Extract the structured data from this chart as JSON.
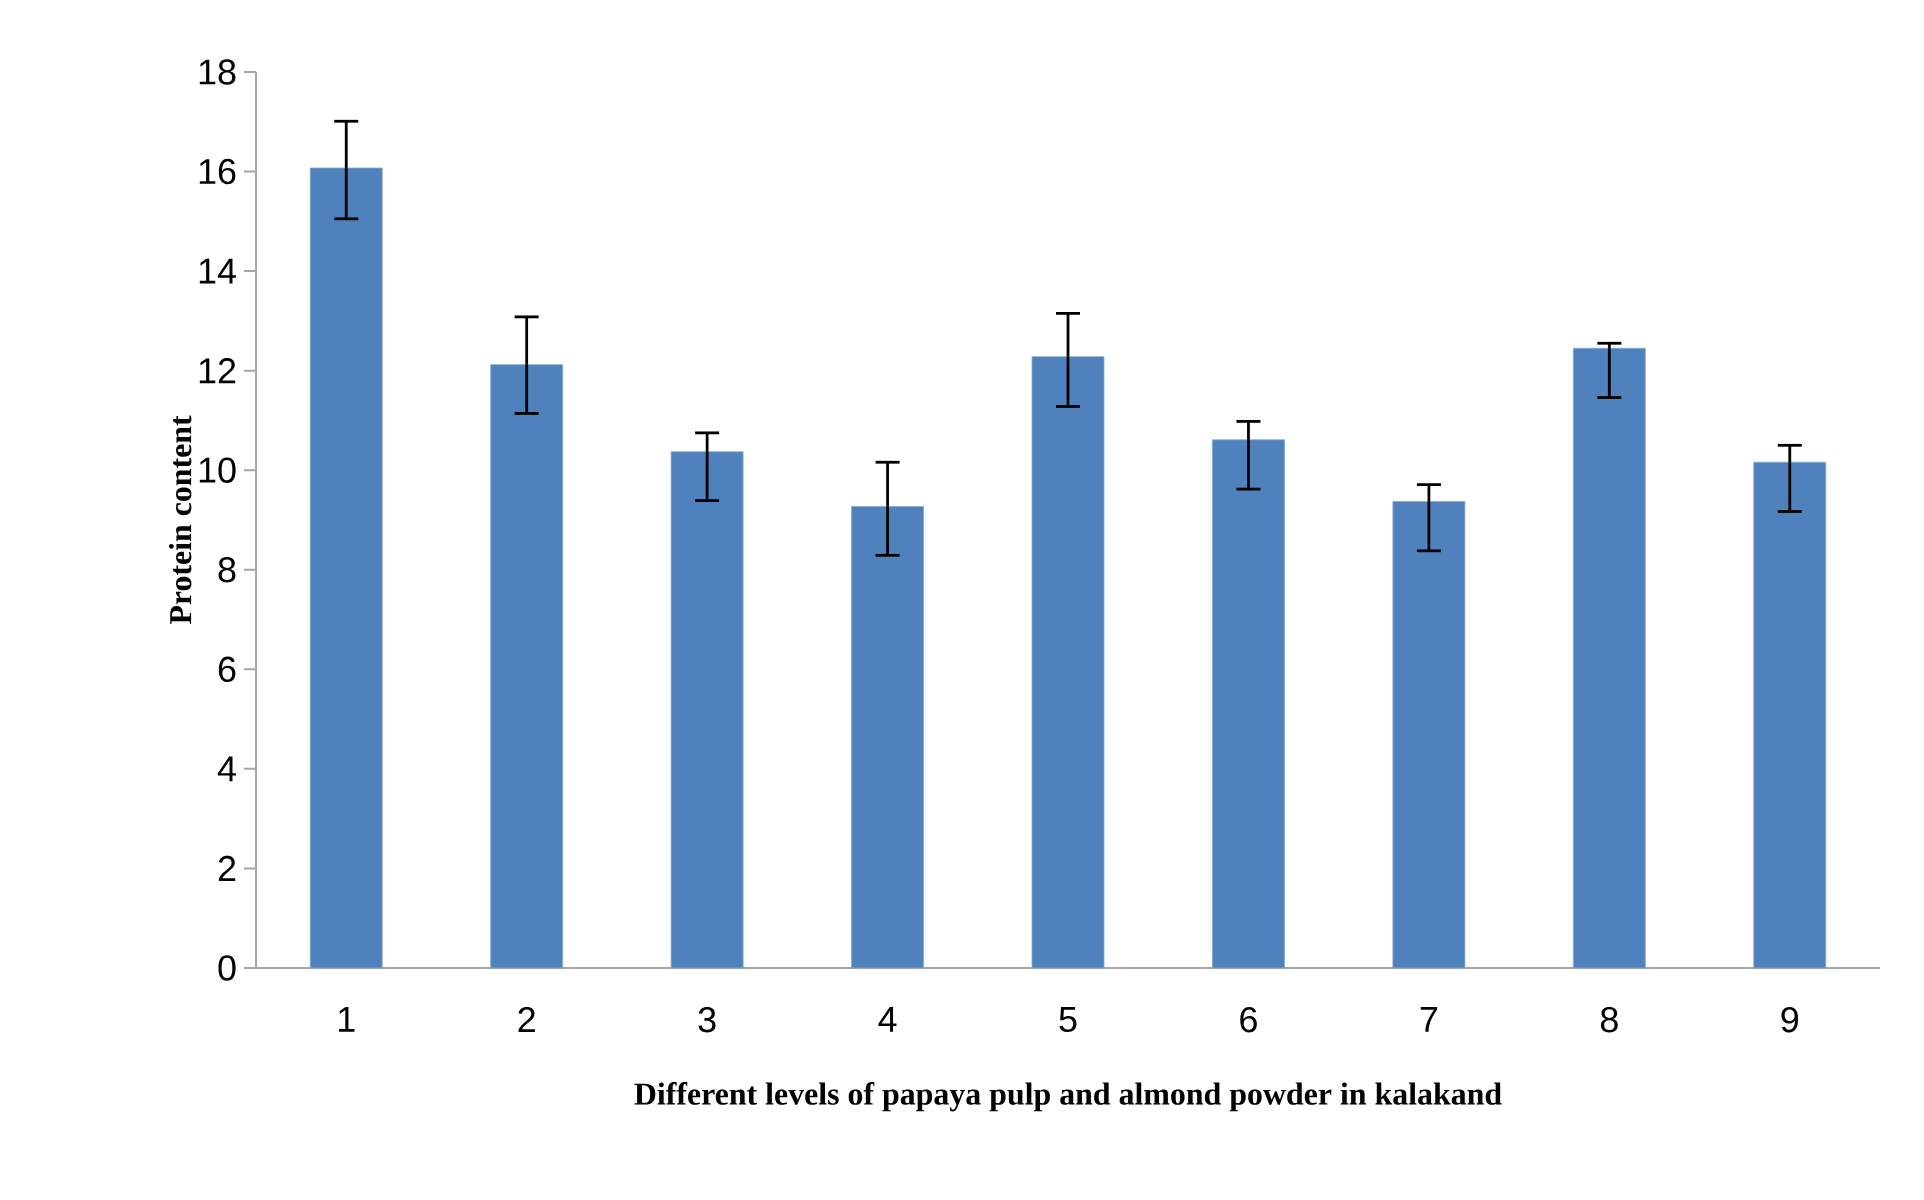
{
  "chart_data": {
    "type": "bar",
    "xlabel": "Different levels of  papaya pulp and almond powder in kalakand",
    "ylabel": "Protein content",
    "categories": [
      "1",
      "2",
      "3",
      "4",
      "5",
      "6",
      "7",
      "8",
      "9"
    ],
    "values": [
      16.07,
      12.12,
      10.37,
      9.27,
      12.28,
      10.61,
      9.37,
      12.45,
      10.16
    ],
    "errors": [
      [
        15.05,
        17.01
      ],
      [
        11.14,
        13.08
      ],
      [
        9.39,
        10.75
      ],
      [
        8.29,
        10.16
      ],
      [
        11.28,
        13.15
      ],
      [
        9.62,
        10.98
      ],
      [
        8.38,
        9.71
      ],
      [
        11.46,
        12.55
      ],
      [
        9.17,
        10.5
      ]
    ],
    "color": "#4f81bd",
    "ylim": [
      0,
      18
    ],
    "yticks": [
      0,
      2,
      4,
      6,
      8,
      10,
      12,
      14,
      16,
      18
    ],
    "grid": false
  }
}
